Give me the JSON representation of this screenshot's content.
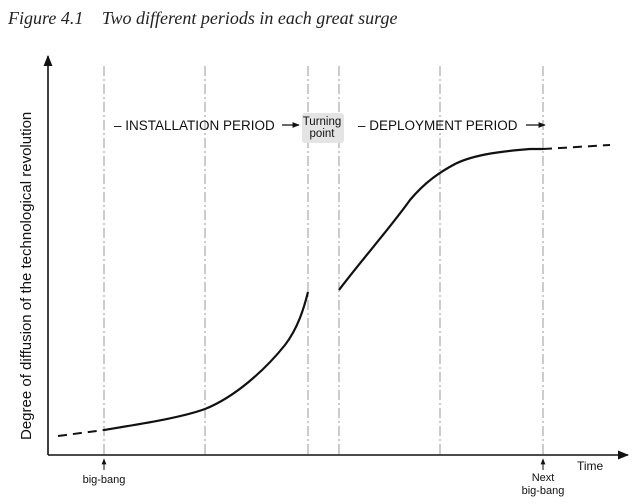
{
  "caption": {
    "number": "Figure 4.1",
    "title": "Two different periods in each great surge"
  },
  "diagram": {
    "y_axis_label": "Degree of diffusion of the technological revolution",
    "x_axis_label": "Time",
    "installation_label": "– INSTALLATION PERIOD",
    "turning_point_line1": "Turning",
    "turning_point_line2": "point",
    "deployment_label": "– DEPLOYMENT PERIOD",
    "big_bang_label": "big-bang",
    "next_big_bang_line1": "Next",
    "next_big_bang_line2": "big-bang"
  }
}
